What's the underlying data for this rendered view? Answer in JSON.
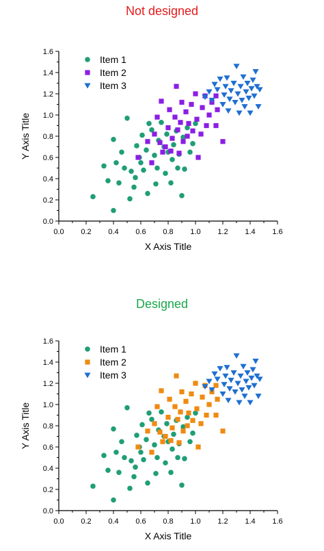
{
  "chart_data": [
    {
      "type": "scatter",
      "title": "Not designed",
      "title_color": "#e41a1c",
      "xlabel": "X Axis Title",
      "ylabel": "Y Axis Title",
      "xlim": [
        0,
        1.6
      ],
      "ylim": [
        0,
        1.6
      ],
      "xticks": [
        "0.0",
        "0.2",
        "0.4",
        "0.6",
        "0.8",
        "1.0",
        "1.2",
        "1.4",
        "1.6"
      ],
      "yticks": [
        "0.0",
        "0.2",
        "0.4",
        "0.6",
        "0.8",
        "1.0",
        "1.2",
        "1.4",
        "1.6"
      ],
      "grid": false,
      "legend_position": "top-left",
      "series": [
        {
          "name": "Item 1",
          "marker": "circle",
          "color": "#1f9e77",
          "points": [
            [
              0.25,
              0.23
            ],
            [
              0.4,
              0.1
            ],
            [
              0.33,
              0.52
            ],
            [
              0.36,
              0.38
            ],
            [
              0.4,
              0.77
            ],
            [
              0.42,
              0.55
            ],
            [
              0.44,
              0.36
            ],
            [
              0.46,
              0.65
            ],
            [
              0.48,
              0.5
            ],
            [
              0.5,
              0.97
            ],
            [
              0.52,
              0.21
            ],
            [
              0.53,
              0.47
            ],
            [
              0.55,
              0.32
            ],
            [
              0.56,
              0.41
            ],
            [
              0.57,
              0.71
            ],
            [
              0.59,
              0.6
            ],
            [
              0.6,
              0.55
            ],
            [
              0.61,
              0.81
            ],
            [
              0.62,
              0.48
            ],
            [
              0.64,
              0.67
            ],
            [
              0.65,
              0.26
            ],
            [
              0.66,
              0.92
            ],
            [
              0.68,
              0.86
            ],
            [
              0.7,
              0.62
            ],
            [
              0.71,
              0.35
            ],
            [
              0.72,
              0.5
            ],
            [
              0.73,
              0.76
            ],
            [
              0.75,
              0.93
            ],
            [
              0.77,
              0.7
            ],
            [
              0.78,
              0.45
            ],
            [
              0.79,
              0.82
            ],
            [
              0.8,
              0.65
            ],
            [
              0.82,
              0.36
            ],
            [
              0.83,
              0.58
            ],
            [
              0.84,
              0.72
            ],
            [
              0.86,
              0.85
            ],
            [
              0.87,
              0.5
            ],
            [
              0.88,
              0.63
            ],
            [
              0.9,
              0.24
            ],
            [
              0.91,
              0.79
            ],
            [
              0.92,
              0.49
            ],
            [
              0.94,
              0.88
            ],
            [
              0.96,
              0.65
            ],
            [
              0.98,
              0.73
            ],
            [
              1.0,
              0.92
            ]
          ]
        },
        {
          "name": "Item 2",
          "marker": "square",
          "color": "#8c1ee3",
          "points": [
            [
              0.58,
              0.6
            ],
            [
              0.65,
              0.75
            ],
            [
              0.68,
              0.55
            ],
            [
              0.7,
              0.82
            ],
            [
              0.72,
              0.98
            ],
            [
              0.74,
              0.74
            ],
            [
              0.75,
              1.13
            ],
            [
              0.76,
              0.65
            ],
            [
              0.78,
              0.7
            ],
            [
              0.8,
              0.88
            ],
            [
              0.81,
              1.05
            ],
            [
              0.82,
              0.66
            ],
            [
              0.83,
              0.78
            ],
            [
              0.85,
              0.98
            ],
            [
              0.86,
              1.27
            ],
            [
              0.87,
              0.86
            ],
            [
              0.88,
              0.64
            ],
            [
              0.89,
              0.93
            ],
            [
              0.9,
              1.12
            ],
            [
              0.91,
              0.75
            ],
            [
              0.93,
              1.03
            ],
            [
              0.94,
              0.8
            ],
            [
              0.95,
              0.92
            ],
            [
              0.97,
              1.1
            ],
            [
              0.98,
              0.85
            ],
            [
              1.0,
              1.2
            ],
            [
              1.01,
              0.96
            ],
            [
              1.02,
              0.6
            ],
            [
              1.04,
              0.82
            ],
            [
              1.05,
              1.07
            ],
            [
              1.07,
              1.18
            ],
            [
              1.08,
              0.9
            ],
            [
              1.1,
              1.0
            ],
            [
              1.12,
              1.12
            ],
            [
              1.15,
              1.18
            ],
            [
              1.16,
              1.05
            ],
            [
              1.15,
              0.9
            ],
            [
              1.2,
              0.75
            ]
          ]
        },
        {
          "name": "Item 3",
          "marker": "triangle-down",
          "color": "#1f6fd1",
          "points": [
            [
              1.07,
              1.17
            ],
            [
              1.1,
              1.22
            ],
            [
              1.12,
              1.14
            ],
            [
              1.14,
              1.29
            ],
            [
              1.16,
              1.24
            ],
            [
              1.18,
              1.34
            ],
            [
              1.2,
              1.1
            ],
            [
              1.21,
              1.19
            ],
            [
              1.22,
              1.27
            ],
            [
              1.23,
              1.35
            ],
            [
              1.24,
              1.04
            ],
            [
              1.25,
              1.15
            ],
            [
              1.26,
              1.23
            ],
            [
              1.28,
              1.3
            ],
            [
              1.29,
              1.12
            ],
            [
              1.3,
              1.46
            ],
            [
              1.31,
              1.2
            ],
            [
              1.32,
              1.02
            ],
            [
              1.33,
              1.27
            ],
            [
              1.34,
              1.14
            ],
            [
              1.35,
              1.36
            ],
            [
              1.36,
              1.08
            ],
            [
              1.37,
              1.22
            ],
            [
              1.38,
              1.3
            ],
            [
              1.39,
              1.16
            ],
            [
              1.4,
              1.02
            ],
            [
              1.41,
              1.25
            ],
            [
              1.42,
              1.33
            ],
            [
              1.43,
              1.18
            ],
            [
              1.44,
              1.41
            ],
            [
              1.45,
              1.27
            ],
            [
              1.46,
              1.08
            ],
            [
              1.47,
              1.24
            ]
          ]
        }
      ]
    },
    {
      "type": "scatter",
      "title": "Designed",
      "title_color": "#1aa84a",
      "xlabel": "X Axis Title",
      "ylabel": "Y Axis Title",
      "xlim": [
        0,
        1.6
      ],
      "ylim": [
        0,
        1.6
      ],
      "xticks": [
        "0.0",
        "0.2",
        "0.4",
        "0.6",
        "0.8",
        "1.0",
        "1.2",
        "1.4",
        "1.6"
      ],
      "yticks": [
        "0.0",
        "0.2",
        "0.4",
        "0.6",
        "0.8",
        "1.0",
        "1.2",
        "1.4",
        "1.6"
      ],
      "grid": false,
      "legend_position": "top-left",
      "series": [
        {
          "name": "Item 1",
          "marker": "circle",
          "color": "#1f9e77",
          "points": [
            [
              0.25,
              0.23
            ],
            [
              0.4,
              0.1
            ],
            [
              0.33,
              0.52
            ],
            [
              0.36,
              0.38
            ],
            [
              0.4,
              0.77
            ],
            [
              0.42,
              0.55
            ],
            [
              0.44,
              0.36
            ],
            [
              0.46,
              0.65
            ],
            [
              0.48,
              0.5
            ],
            [
              0.5,
              0.97
            ],
            [
              0.52,
              0.21
            ],
            [
              0.53,
              0.47
            ],
            [
              0.55,
              0.32
            ],
            [
              0.56,
              0.41
            ],
            [
              0.57,
              0.71
            ],
            [
              0.59,
              0.6
            ],
            [
              0.6,
              0.55
            ],
            [
              0.61,
              0.81
            ],
            [
              0.62,
              0.48
            ],
            [
              0.64,
              0.67
            ],
            [
              0.65,
              0.26
            ],
            [
              0.66,
              0.92
            ],
            [
              0.68,
              0.86
            ],
            [
              0.7,
              0.62
            ],
            [
              0.71,
              0.35
            ],
            [
              0.72,
              0.5
            ],
            [
              0.73,
              0.76
            ],
            [
              0.75,
              0.93
            ],
            [
              0.77,
              0.7
            ],
            [
              0.78,
              0.45
            ],
            [
              0.79,
              0.82
            ],
            [
              0.8,
              0.65
            ],
            [
              0.82,
              0.36
            ],
            [
              0.83,
              0.58
            ],
            [
              0.84,
              0.72
            ],
            [
              0.86,
              0.85
            ],
            [
              0.87,
              0.5
            ],
            [
              0.88,
              0.63
            ],
            [
              0.9,
              0.24
            ],
            [
              0.91,
              0.79
            ],
            [
              0.92,
              0.49
            ],
            [
              0.94,
              0.88
            ],
            [
              0.96,
              0.65
            ],
            [
              0.98,
              0.73
            ],
            [
              1.0,
              0.92
            ]
          ]
        },
        {
          "name": "Item 2",
          "marker": "square",
          "color": "#ef8a12",
          "points": [
            [
              0.58,
              0.6
            ],
            [
              0.65,
              0.75
            ],
            [
              0.68,
              0.55
            ],
            [
              0.7,
              0.82
            ],
            [
              0.72,
              0.98
            ],
            [
              0.74,
              0.74
            ],
            [
              0.75,
              1.13
            ],
            [
              0.76,
              0.65
            ],
            [
              0.78,
              0.7
            ],
            [
              0.8,
              0.88
            ],
            [
              0.81,
              1.05
            ],
            [
              0.82,
              0.66
            ],
            [
              0.83,
              0.78
            ],
            [
              0.85,
              0.98
            ],
            [
              0.86,
              1.27
            ],
            [
              0.87,
              0.86
            ],
            [
              0.88,
              0.64
            ],
            [
              0.89,
              0.93
            ],
            [
              0.9,
              1.12
            ],
            [
              0.91,
              0.75
            ],
            [
              0.93,
              1.03
            ],
            [
              0.94,
              0.8
            ],
            [
              0.95,
              0.92
            ],
            [
              0.97,
              1.1
            ],
            [
              0.98,
              0.85
            ],
            [
              1.0,
              1.2
            ],
            [
              1.01,
              0.96
            ],
            [
              1.02,
              0.6
            ],
            [
              1.04,
              0.82
            ],
            [
              1.05,
              1.07
            ],
            [
              1.07,
              1.18
            ],
            [
              1.08,
              0.9
            ],
            [
              1.1,
              1.0
            ],
            [
              1.12,
              1.12
            ],
            [
              1.15,
              1.18
            ],
            [
              1.16,
              1.05
            ],
            [
              1.15,
              0.9
            ],
            [
              1.2,
              0.75
            ]
          ]
        },
        {
          "name": "Item 3",
          "marker": "triangle-down",
          "color": "#1f6fd1",
          "points": [
            [
              1.07,
              1.17
            ],
            [
              1.1,
              1.22
            ],
            [
              1.12,
              1.14
            ],
            [
              1.14,
              1.29
            ],
            [
              1.16,
              1.24
            ],
            [
              1.18,
              1.34
            ],
            [
              1.2,
              1.1
            ],
            [
              1.21,
              1.19
            ],
            [
              1.22,
              1.27
            ],
            [
              1.23,
              1.35
            ],
            [
              1.24,
              1.04
            ],
            [
              1.25,
              1.15
            ],
            [
              1.26,
              1.23
            ],
            [
              1.28,
              1.3
            ],
            [
              1.29,
              1.12
            ],
            [
              1.3,
              1.46
            ],
            [
              1.31,
              1.2
            ],
            [
              1.32,
              1.02
            ],
            [
              1.33,
              1.27
            ],
            [
              1.34,
              1.14
            ],
            [
              1.35,
              1.36
            ],
            [
              1.36,
              1.08
            ],
            [
              1.37,
              1.22
            ],
            [
              1.38,
              1.3
            ],
            [
              1.39,
              1.16
            ],
            [
              1.4,
              1.02
            ],
            [
              1.41,
              1.25
            ],
            [
              1.42,
              1.33
            ],
            [
              1.43,
              1.18
            ],
            [
              1.44,
              1.41
            ],
            [
              1.45,
              1.27
            ],
            [
              1.46,
              1.08
            ],
            [
              1.47,
              1.24
            ]
          ]
        }
      ]
    }
  ]
}
